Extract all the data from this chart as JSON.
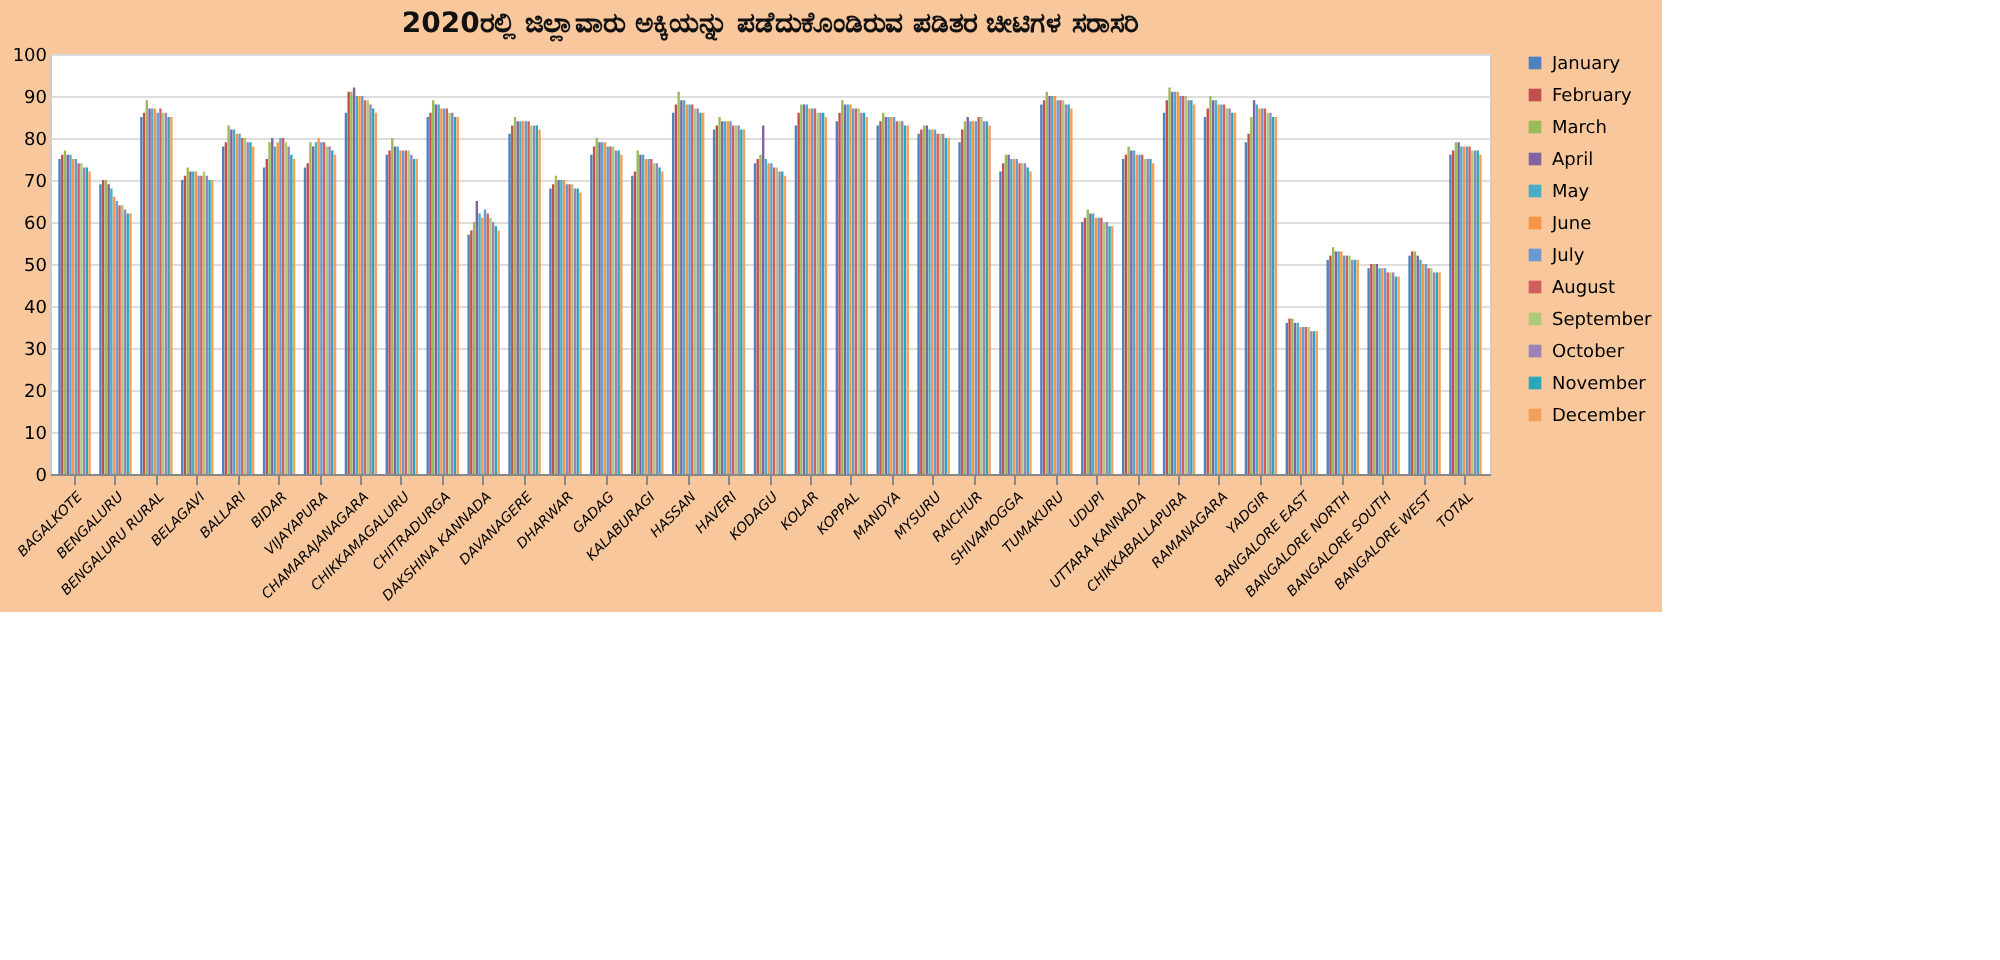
{
  "chart_data": {
    "type": "bar",
    "title": "2020ರಲ್ಲಿ ಜಿಲ್ಲಾವಾರು ಅಕ್ಕಿಯನ್ನು ಪಡೆದುಕೊಂಡಿರುವ ಪಡಿತರ ಚೀಟಿಗಳ ಸರಾಸರಿ",
    "categories": [
      "BAGALKOTE",
      "BENGALURU",
      "BENGALURU RURAL",
      "BELAGAVI",
      "BALLARI",
      "BIDAR",
      "VIJAYAPURA",
      "CHAMARAJANAGARA",
      "CHIKKAMAGALURU",
      "CHITRADURGA",
      "DAKSHINA KANNADA",
      "DAVANAGERE",
      "DHARWAR",
      "GADAG",
      "KALABURAGI",
      "HASSAN",
      "HAVERI",
      "KODAGU",
      "KOLAR",
      "KOPPAL",
      "MANDYA",
      "MYSURU",
      "RAICHUR",
      "SHIVAMOGGA",
      "TUMAKURU",
      "UDUPI",
      "UTTARA KANNADA",
      "CHIKKABALLAPURA",
      "RAMANAGARA",
      "YADGIR",
      "BANGALORE EAST",
      "BANGALORE NORTH",
      "BANGALORE SOUTH",
      "BANGALORE WEST",
      "TOTAL"
    ],
    "series": [
      {
        "name": "January",
        "color": "#4f81bd",
        "values": [
          75,
          69,
          85,
          70,
          78,
          73,
          73,
          86,
          76,
          85,
          57,
          81,
          68,
          76,
          71,
          86,
          82,
          74,
          83,
          84,
          83,
          81,
          79,
          72,
          88,
          60,
          75,
          86,
          85,
          79,
          36,
          51,
          49,
          52,
          76
        ]
      },
      {
        "name": "February",
        "color": "#c0504d",
        "values": [
          76,
          70,
          86,
          71,
          79,
          75,
          74,
          91,
          77,
          86,
          58,
          83,
          69,
          78,
          72,
          88,
          83,
          75,
          86,
          86,
          84,
          82,
          82,
          74,
          89,
          61,
          76,
          89,
          87,
          81,
          37,
          52,
          50,
          53,
          77
        ]
      },
      {
        "name": "March",
        "color": "#9bbb59",
        "values": [
          77,
          70,
          89,
          73,
          83,
          79,
          79,
          91,
          80,
          89,
          60,
          85,
          71,
          80,
          77,
          91,
          85,
          76,
          88,
          89,
          86,
          83,
          84,
          76,
          91,
          63,
          78,
          92,
          90,
          85,
          37,
          54,
          50,
          53,
          79
        ]
      },
      {
        "name": "April",
        "color": "#8064a2",
        "values": [
          76,
          69,
          87,
          72,
          82,
          80,
          78,
          92,
          78,
          88,
          65,
          84,
          70,
          79,
          76,
          89,
          84,
          83,
          88,
          88,
          85,
          83,
          85,
          76,
          90,
          62,
          77,
          91,
          89,
          89,
          36,
          53,
          50,
          52,
          79
        ]
      },
      {
        "name": "May",
        "color": "#4bacc6",
        "values": [
          76,
          68,
          87,
          72,
          82,
          78,
          79,
          90,
          78,
          88,
          62,
          84,
          70,
          79,
          76,
          89,
          84,
          75,
          88,
          88,
          85,
          82,
          84,
          75,
          90,
          62,
          77,
          91,
          89,
          88,
          36,
          53,
          49,
          51,
          78
        ]
      },
      {
        "name": "June",
        "color": "#f79646",
        "values": [
          75,
          66,
          87,
          72,
          81,
          79,
          80,
          90,
          77,
          87,
          61,
          84,
          70,
          79,
          75,
          88,
          84,
          74,
          87,
          88,
          85,
          82,
          84,
          75,
          90,
          61,
          76,
          91,
          88,
          87,
          35,
          53,
          49,
          50,
          78
        ]
      },
      {
        "name": "July",
        "color": "#6a9ad2",
        "values": [
          75,
          65,
          86,
          71,
          81,
          80,
          79,
          90,
          77,
          87,
          63,
          84,
          69,
          78,
          75,
          88,
          84,
          74,
          87,
          87,
          85,
          82,
          84,
          75,
          89,
          61,
          76,
          90,
          88,
          87,
          35,
          52,
          49,
          50,
          78
        ]
      },
      {
        "name": "August",
        "color": "#d0605d",
        "values": [
          74,
          64,
          87,
          71,
          80,
          80,
          79,
          89,
          77,
          87,
          62,
          84,
          69,
          78,
          75,
          88,
          83,
          73,
          87,
          87,
          84,
          81,
          85,
          74,
          89,
          61,
          76,
          90,
          88,
          87,
          35,
          52,
          48,
          49,
          78
        ]
      },
      {
        "name": "September",
        "color": "#aec97a",
        "values": [
          74,
          64,
          86,
          72,
          80,
          79,
          78,
          89,
          77,
          86,
          61,
          83,
          69,
          78,
          74,
          87,
          83,
          73,
          86,
          87,
          84,
          81,
          85,
          74,
          89,
          60,
          75,
          90,
          87,
          86,
          35,
          52,
          48,
          49,
          77
        ]
      },
      {
        "name": "October",
        "color": "#9a83b7",
        "values": [
          73,
          63,
          86,
          71,
          79,
          78,
          78,
          88,
          76,
          86,
          60,
          83,
          68,
          77,
          74,
          87,
          83,
          72,
          86,
          86,
          84,
          81,
          84,
          74,
          88,
          60,
          75,
          89,
          87,
          86,
          34,
          51,
          48,
          48,
          77
        ]
      },
      {
        "name": "November",
        "color": "#2aa6b8",
        "values": [
          73,
          62,
          85,
          70,
          79,
          76,
          77,
          87,
          75,
          85,
          59,
          83,
          68,
          77,
          73,
          86,
          82,
          72,
          86,
          86,
          83,
          80,
          84,
          73,
          88,
          59,
          75,
          89,
          86,
          85,
          34,
          51,
          47,
          48,
          77
        ]
      },
      {
        "name": "December",
        "color": "#f5a05a",
        "values": [
          72,
          62,
          85,
          70,
          78,
          75,
          76,
          86,
          75,
          85,
          58,
          82,
          67,
          76,
          72,
          86,
          82,
          71,
          85,
          85,
          83,
          80,
          83,
          72,
          87,
          59,
          74,
          88,
          86,
          85,
          34,
          51,
          47,
          48,
          76
        ]
      }
    ],
    "ylim": [
      0,
      100
    ],
    "yticks": [
      0,
      10,
      20,
      30,
      40,
      50,
      60,
      70,
      80,
      90,
      100
    ],
    "grid": "y",
    "legend": "right"
  }
}
